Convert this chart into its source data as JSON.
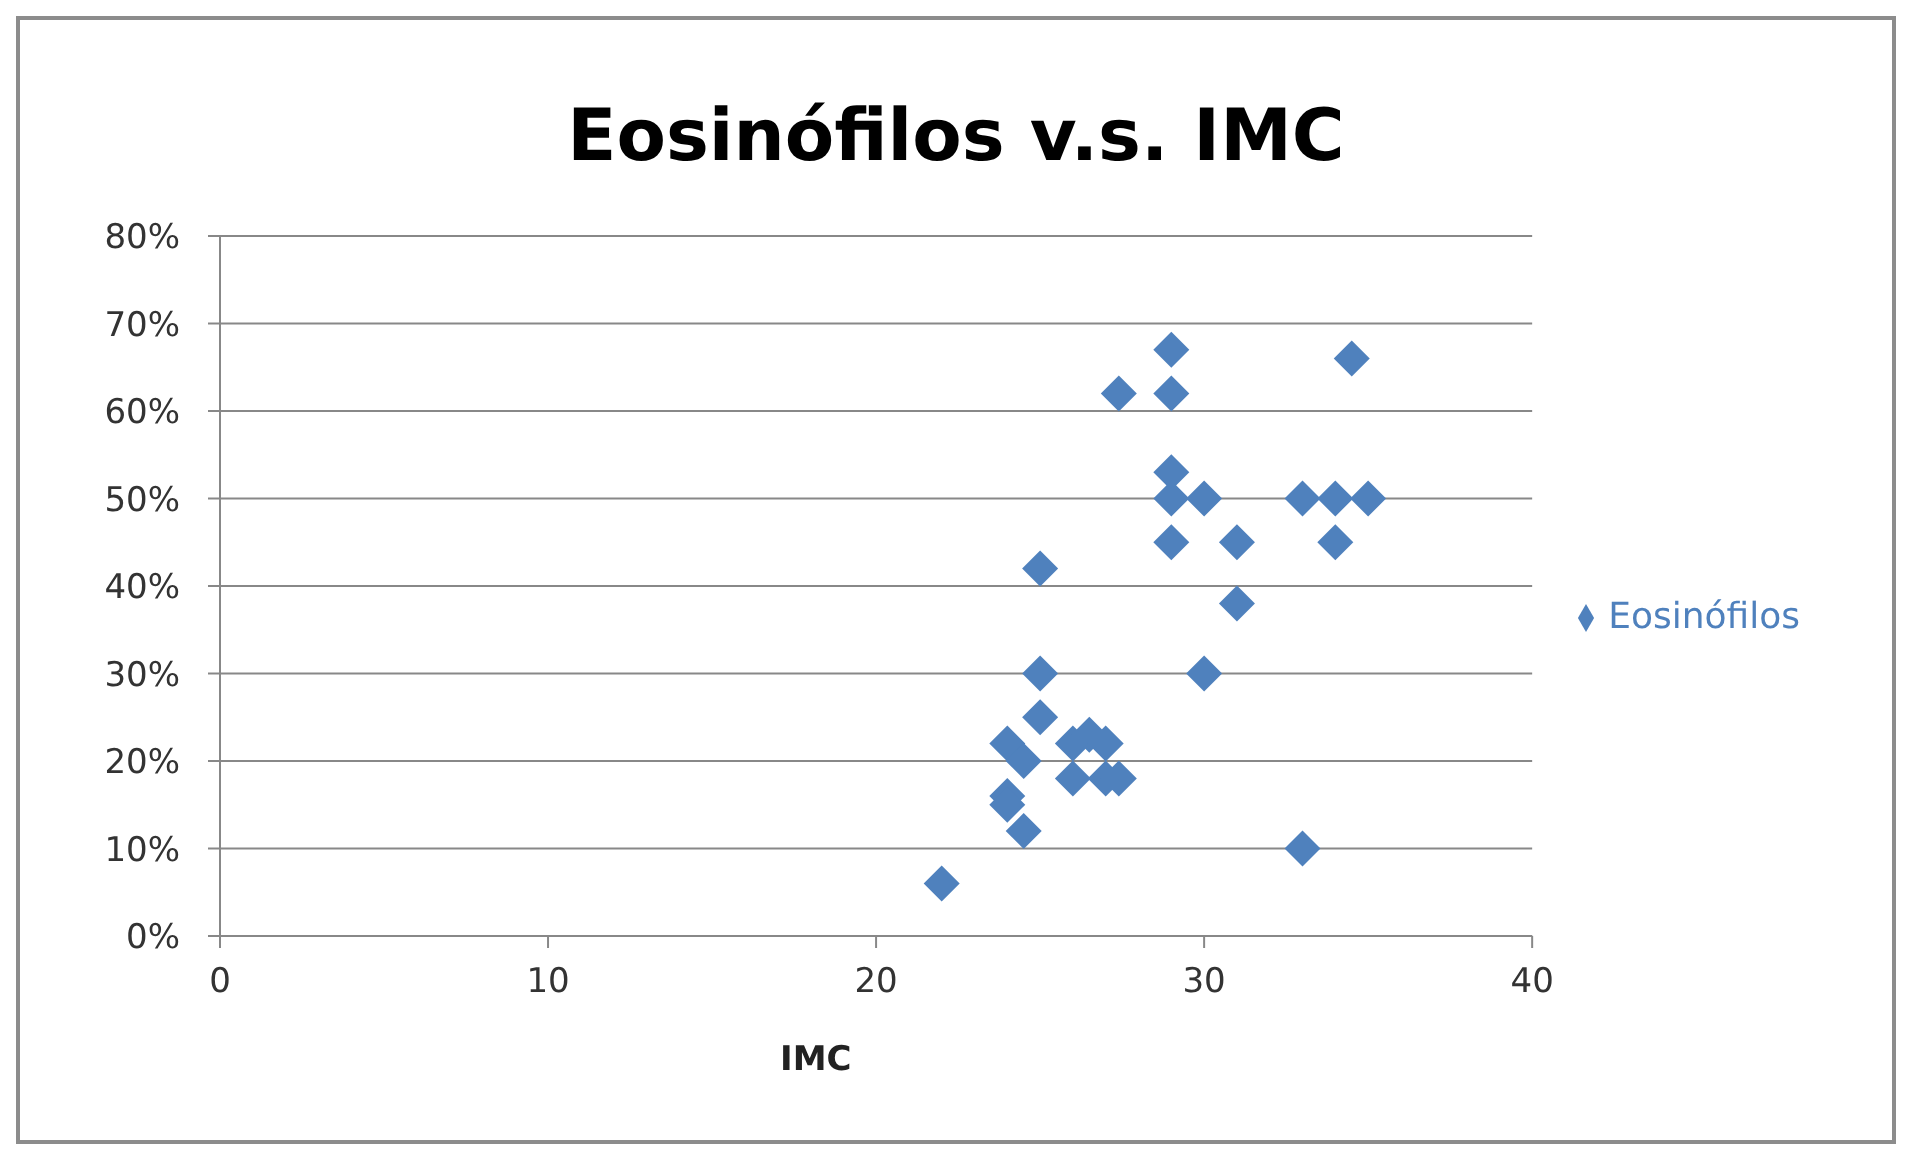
{
  "chart_data": {
    "type": "scatter",
    "title": "Eosinófilos v.s. IMC",
    "xlabel": "IMC",
    "x": [
      22,
      24,
      24,
      24,
      24.5,
      24.5,
      25,
      25,
      25,
      26,
      26,
      26.5,
      27,
      27,
      27.4,
      27.4,
      29,
      29,
      29,
      29,
      29,
      30,
      30,
      31,
      31,
      33,
      33,
      34,
      34,
      34.5,
      35
    ],
    "series": [
      {
        "name": "Eosinófilos",
        "color": "#4f81bd",
        "values": [
          6,
          22,
          16,
          15,
          20,
          12,
          42,
          30,
          25,
          22,
          18,
          23,
          22,
          18,
          18,
          62,
          67,
          62,
          53,
          50,
          45,
          50,
          30,
          45,
          38,
          50,
          10,
          50,
          45,
          66,
          50
        ]
      }
    ],
    "xlim": [
      0,
      40
    ],
    "xticks": [
      0,
      10,
      20,
      30,
      40
    ],
    "ylim": [
      0,
      80
    ],
    "yticks": [
      {
        "value": 0,
        "label": "0%"
      },
      {
        "value": 10,
        "label": "10%"
      },
      {
        "value": 20,
        "label": "20%"
      },
      {
        "value": 30,
        "label": "30%"
      },
      {
        "value": 40,
        "label": "40%"
      },
      {
        "value": 50,
        "label": "50%"
      },
      {
        "value": 60,
        "label": "60%"
      },
      {
        "value": 70,
        "label": "70%"
      },
      {
        "value": 80,
        "label": "80%"
      }
    ],
    "grid": "y",
    "legend": "right",
    "marker": "diamond"
  }
}
